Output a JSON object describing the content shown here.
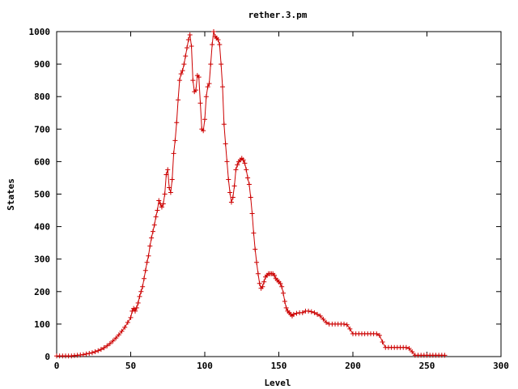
{
  "chart_data": {
    "type": "line",
    "title": "rether.3.pm",
    "xlabel": "Level",
    "ylabel": "States",
    "xlim": [
      0,
      300
    ],
    "ylim": [
      0,
      1000
    ],
    "xticks": [
      0,
      50,
      100,
      150,
      200,
      250,
      300
    ],
    "yticks": [
      0,
      100,
      200,
      300,
      400,
      500,
      600,
      700,
      800,
      900,
      1000
    ],
    "grid": false,
    "legend": "none",
    "series": [
      {
        "color": "#cc0000",
        "marker": "plus",
        "points": [
          [
            0,
            2
          ],
          [
            2,
            2
          ],
          [
            4,
            2
          ],
          [
            6,
            2
          ],
          [
            8,
            2
          ],
          [
            10,
            2
          ],
          [
            12,
            3
          ],
          [
            14,
            4
          ],
          [
            16,
            5
          ],
          [
            18,
            6
          ],
          [
            20,
            8
          ],
          [
            22,
            10
          ],
          [
            24,
            12
          ],
          [
            26,
            15
          ],
          [
            28,
            18
          ],
          [
            30,
            22
          ],
          [
            32,
            27
          ],
          [
            34,
            33
          ],
          [
            36,
            40
          ],
          [
            38,
            48
          ],
          [
            40,
            57
          ],
          [
            42,
            67
          ],
          [
            44,
            78
          ],
          [
            46,
            90
          ],
          [
            48,
            105
          ],
          [
            50,
            120
          ],
          [
            51,
            140
          ],
          [
            52,
            148
          ],
          [
            53,
            140
          ],
          [
            54,
            150
          ],
          [
            55,
            165
          ],
          [
            56,
            185
          ],
          [
            57,
            200
          ],
          [
            58,
            215
          ],
          [
            59,
            240
          ],
          [
            60,
            265
          ],
          [
            61,
            290
          ],
          [
            62,
            310
          ],
          [
            63,
            340
          ],
          [
            64,
            365
          ],
          [
            65,
            385
          ],
          [
            66,
            405
          ],
          [
            67,
            430
          ],
          [
            68,
            450
          ],
          [
            69,
            480
          ],
          [
            70,
            470
          ],
          [
            71,
            460
          ],
          [
            72,
            470
          ],
          [
            73,
            500
          ],
          [
            74,
            560
          ],
          [
            75,
            575
          ],
          [
            76,
            520
          ],
          [
            77,
            505
          ],
          [
            78,
            545
          ],
          [
            79,
            625
          ],
          [
            80,
            665
          ],
          [
            81,
            720
          ],
          [
            82,
            790
          ],
          [
            83,
            850
          ],
          [
            84,
            870
          ],
          [
            85,
            880
          ],
          [
            86,
            900
          ],
          [
            87,
            925
          ],
          [
            88,
            950
          ],
          [
            89,
            975
          ],
          [
            90,
            990
          ],
          [
            91,
            955
          ],
          [
            92,
            850
          ],
          [
            93,
            815
          ],
          [
            94,
            820
          ],
          [
            95,
            865
          ],
          [
            96,
            860
          ],
          [
            97,
            780
          ],
          [
            98,
            700
          ],
          [
            99,
            695
          ],
          [
            100,
            730
          ],
          [
            101,
            800
          ],
          [
            102,
            830
          ],
          [
            103,
            840
          ],
          [
            104,
            900
          ],
          [
            105,
            960
          ],
          [
            106,
            1000
          ],
          [
            107,
            985
          ],
          [
            108,
            980
          ],
          [
            109,
            975
          ],
          [
            110,
            960
          ],
          [
            111,
            900
          ],
          [
            112,
            830
          ],
          [
            113,
            715
          ],
          [
            114,
            655
          ],
          [
            115,
            600
          ],
          [
            116,
            545
          ],
          [
            117,
            505
          ],
          [
            118,
            475
          ],
          [
            119,
            490
          ],
          [
            120,
            525
          ],
          [
            121,
            575
          ],
          [
            122,
            590
          ],
          [
            123,
            600
          ],
          [
            124,
            605
          ],
          [
            125,
            610
          ],
          [
            126,
            605
          ],
          [
            127,
            595
          ],
          [
            128,
            575
          ],
          [
            129,
            550
          ],
          [
            130,
            530
          ],
          [
            131,
            490
          ],
          [
            132,
            440
          ],
          [
            133,
            380
          ],
          [
            134,
            330
          ],
          [
            135,
            290
          ],
          [
            136,
            255
          ],
          [
            137,
            225
          ],
          [
            138,
            210
          ],
          [
            139,
            215
          ],
          [
            140,
            230
          ],
          [
            141,
            245
          ],
          [
            142,
            250
          ],
          [
            143,
            255
          ],
          [
            144,
            255
          ],
          [
            145,
            255
          ],
          [
            146,
            255
          ],
          [
            147,
            250
          ],
          [
            148,
            240
          ],
          [
            149,
            235
          ],
          [
            150,
            230
          ],
          [
            151,
            225
          ],
          [
            152,
            215
          ],
          [
            153,
            195
          ],
          [
            154,
            170
          ],
          [
            155,
            150
          ],
          [
            156,
            140
          ],
          [
            157,
            135
          ],
          [
            158,
            130
          ],
          [
            159,
            125
          ],
          [
            160,
            130
          ],
          [
            162,
            133
          ],
          [
            164,
            135
          ],
          [
            166,
            135
          ],
          [
            168,
            140
          ],
          [
            170,
            140
          ],
          [
            172,
            138
          ],
          [
            174,
            135
          ],
          [
            176,
            130
          ],
          [
            178,
            125
          ],
          [
            180,
            115
          ],
          [
            182,
            105
          ],
          [
            184,
            100
          ],
          [
            186,
            100
          ],
          [
            188,
            100
          ],
          [
            190,
            100
          ],
          [
            192,
            100
          ],
          [
            194,
            100
          ],
          [
            196,
            98
          ],
          [
            198,
            85
          ],
          [
            200,
            70
          ],
          [
            202,
            70
          ],
          [
            204,
            70
          ],
          [
            206,
            70
          ],
          [
            208,
            70
          ],
          [
            210,
            70
          ],
          [
            212,
            70
          ],
          [
            214,
            70
          ],
          [
            216,
            70
          ],
          [
            218,
            65
          ],
          [
            220,
            45
          ],
          [
            222,
            28
          ],
          [
            224,
            28
          ],
          [
            226,
            28
          ],
          [
            228,
            28
          ],
          [
            230,
            28
          ],
          [
            232,
            28
          ],
          [
            234,
            28
          ],
          [
            236,
            28
          ],
          [
            238,
            25
          ],
          [
            240,
            15
          ],
          [
            242,
            4
          ],
          [
            244,
            4
          ],
          [
            246,
            4
          ],
          [
            248,
            4
          ],
          [
            250,
            4
          ],
          [
            252,
            4
          ],
          [
            254,
            4
          ],
          [
            256,
            4
          ],
          [
            258,
            4
          ],
          [
            260,
            4
          ],
          [
            262,
            4
          ]
        ]
      }
    ]
  }
}
